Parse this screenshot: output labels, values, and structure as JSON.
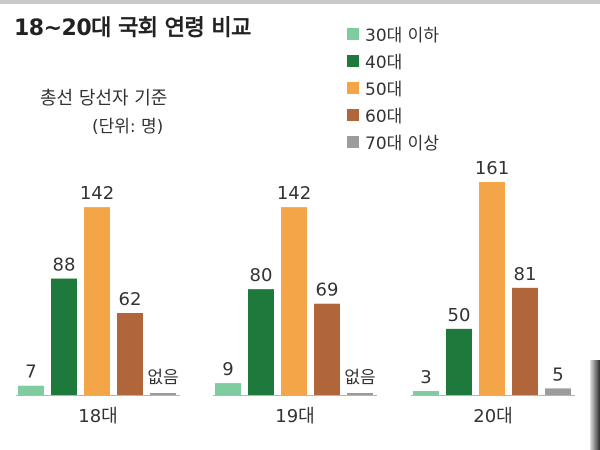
{
  "chart_data": {
    "type": "bar",
    "title": "18~20대 국회 연령 비교",
    "subtitle": "총선 당선자 기준",
    "unit_note": "(단위: 명)",
    "categories": [
      "18대",
      "19대",
      "20대"
    ],
    "series": [
      {
        "name": "30대 이하",
        "color": "#7fcca0",
        "values": [
          7,
          9,
          3
        ],
        "labels": [
          "7",
          "9",
          "3"
        ]
      },
      {
        "name": "40대",
        "color": "#1e7a3c",
        "values": [
          88,
          80,
          50
        ],
        "labels": [
          "88",
          "80",
          "50"
        ]
      },
      {
        "name": "50대",
        "color": "#f4a547",
        "values": [
          142,
          142,
          161
        ],
        "labels": [
          "142",
          "142",
          "161"
        ]
      },
      {
        "name": "60대",
        "color": "#b0663a",
        "values": [
          62,
          69,
          81
        ],
        "labels": [
          "62",
          "69",
          "81"
        ]
      },
      {
        "name": "70대 이상",
        "color": "#9c9c9c",
        "values": [
          0,
          0,
          5
        ],
        "labels": [
          "없음",
          "없음",
          "5"
        ]
      }
    ],
    "ylim": [
      0,
      175
    ],
    "grid": false,
    "legend_position": "top-right"
  }
}
